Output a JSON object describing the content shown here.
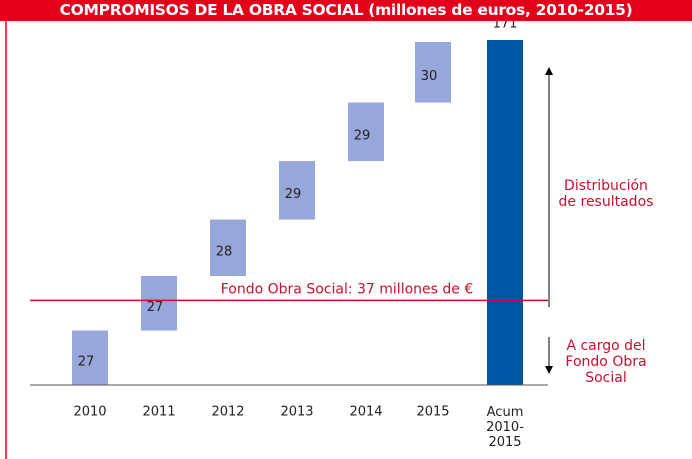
{
  "chart_data": {
    "type": "waterfall",
    "title": "COMPROMISOS DE LA OBRA SOCIAL (millones de euros, 2010-2015)",
    "categories": [
      "2010",
      "2011",
      "2012",
      "2013",
      "2014",
      "2015"
    ],
    "values": [
      27,
      27,
      28,
      29,
      29,
      30
    ],
    "color": "#97a7d9",
    "total": {
      "label": "Acum 2010-2015",
      "value": 171,
      "color": "#0056a6"
    },
    "reference_line": {
      "value": 37,
      "label": "Fondo Obra Social: 37 millones de €",
      "color": "#c8102e"
    },
    "annotations": [
      "Distribución de resultados",
      "A cargo del Fondo Obra Social"
    ]
  }
}
